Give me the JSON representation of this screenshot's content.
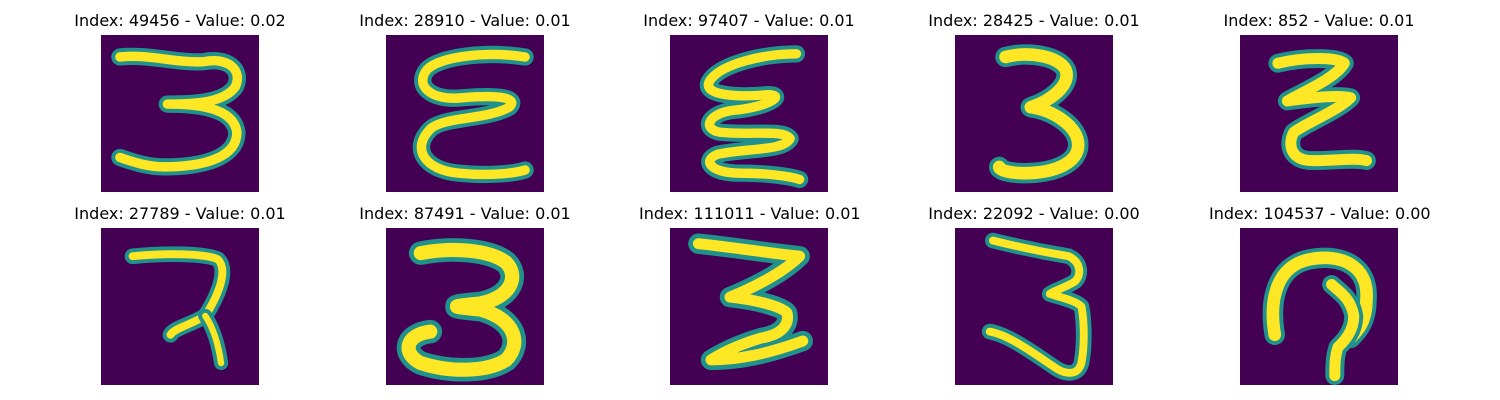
{
  "colors": {
    "background": "#440154",
    "stroke": "#fde725",
    "edge": "#21918c"
  },
  "panels": [
    {
      "title": "Index: 49456 - Value: 0.02",
      "digit": "three-wavy"
    },
    {
      "title": "Index: 28910 - Value: 0.01",
      "digit": "epsilon-loops"
    },
    {
      "title": "Index: 97407 - Value: 0.01",
      "digit": "wavy-zigzag"
    },
    {
      "title": "Index: 28425 - Value: 0.01",
      "digit": "three-bold"
    },
    {
      "title": "Index: 852 - Value: 0.01",
      "digit": "z-zigzag"
    },
    {
      "title": "Index: 27789 - Value: 0.01",
      "digit": "seven-like"
    },
    {
      "title": "Index: 87491 - Value: 0.01",
      "digit": "three-thick"
    },
    {
      "title": "Index: 111011 - Value: 0.01",
      "digit": "three-angular"
    },
    {
      "title": "Index: 22092 - Value: 0.00",
      "digit": "three-tall"
    },
    {
      "title": "Index: 104537 - Value: 0.00",
      "digit": "loop-hook"
    }
  ]
}
